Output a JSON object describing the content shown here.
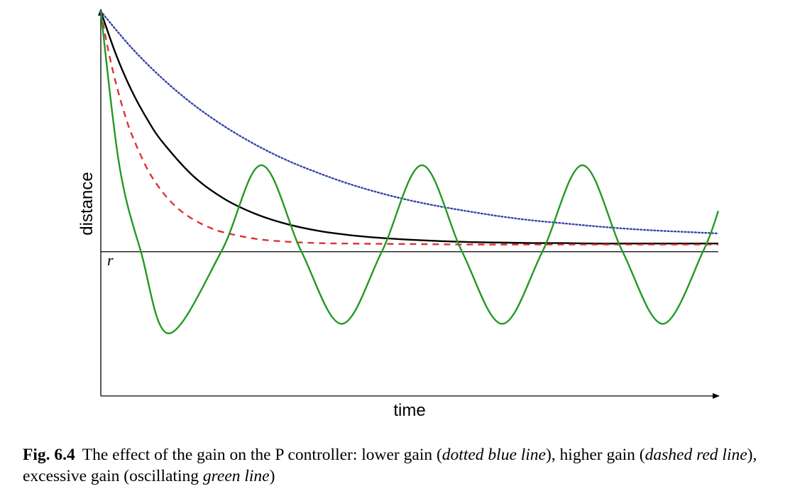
{
  "chart_data": {
    "type": "line",
    "title": "",
    "xlabel": "time",
    "ylabel": "distance",
    "reference_label": "r",
    "xlim": [
      0,
      10
    ],
    "ylim": [
      -3,
      5
    ],
    "axis_ticks": false,
    "grid": false,
    "legend": "none",
    "reference_line": {
      "label": "r",
      "y": 0
    },
    "series": [
      {
        "style": "dotted",
        "color": "#3344aa",
        "x": [
          0,
          0.5,
          1,
          1.5,
          2,
          2.5,
          3,
          3.5,
          4,
          4.5,
          5,
          5.5,
          6,
          6.5,
          7,
          7.5,
          8,
          8.5,
          9,
          9.5,
          10
        ],
        "y": [
          5.0,
          4.24,
          3.6,
          3.06,
          2.61,
          2.23,
          1.91,
          1.65,
          1.42,
          1.23,
          1.07,
          0.94,
          0.83,
          0.73,
          0.65,
          0.59,
          0.53,
          0.48,
          0.44,
          0.41,
          0.38
        ]
      },
      {
        "style": "solid",
        "color": "#000000",
        "x": [
          0,
          0.25,
          0.5,
          0.75,
          1,
          1.5,
          2,
          2.5,
          3,
          3.5,
          4,
          4.5,
          5,
          5.5,
          6,
          6.5,
          7,
          7.5,
          8,
          8.5,
          9,
          9.5,
          10
        ],
        "y": [
          5.0,
          4.09,
          3.35,
          2.76,
          2.28,
          1.57,
          1.1,
          0.79,
          0.58,
          0.44,
          0.35,
          0.29,
          0.25,
          0.22,
          0.2,
          0.19,
          0.18,
          0.18,
          0.17,
          0.17,
          0.17,
          0.17,
          0.17
        ]
      },
      {
        "style": "dashed",
        "color": "#dd3333",
        "x": [
          0,
          0.1,
          0.2,
          0.3,
          0.4,
          0.5,
          0.75,
          1,
          1.25,
          1.5,
          1.75,
          2,
          2.5,
          3,
          3.5,
          4,
          5,
          6,
          7,
          8,
          9,
          10
        ],
        "y": [
          5.0,
          4.32,
          3.74,
          3.24,
          2.81,
          2.44,
          1.73,
          1.24,
          0.9,
          0.67,
          0.51,
          0.4,
          0.27,
          0.21,
          0.18,
          0.17,
          0.16,
          0.15,
          0.15,
          0.15,
          0.15,
          0.15
        ]
      },
      {
        "style": "solid",
        "color": "#229922",
        "x": [
          0,
          0.3,
          0.65,
          1.1,
          1.95,
          2.6,
          3.25,
          3.9,
          4.55,
          5.2,
          5.85,
          6.5,
          7.15,
          7.8,
          8.45,
          9.1,
          9.75,
          10
        ],
        "y": [
          5.0,
          1.8,
          0.0,
          -1.7,
          0.0,
          1.8,
          0.0,
          -1.5,
          0.0,
          1.8,
          0.0,
          -1.5,
          0.0,
          1.8,
          0.0,
          -1.5,
          0.0,
          0.85
        ]
      }
    ]
  },
  "caption": {
    "fig_number": "Fig. 6.4",
    "part1": "The effect of the gain on the P controller: lower gain (",
    "em1": "dotted blue line",
    "part2": "), higher gain (",
    "em2": "dashed red line",
    "part3": "), excessive gain (oscillating ",
    "em3": "green line",
    "part4": ")"
  }
}
